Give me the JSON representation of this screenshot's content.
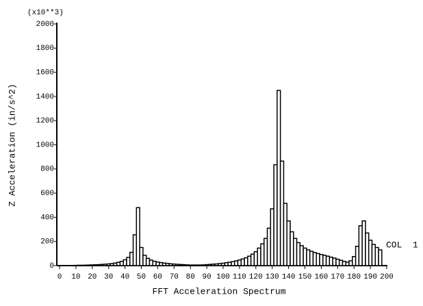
{
  "chart_data": {
    "type": "bar",
    "y_unit_label": "(x10**3)",
    "x_label": "FFT Acceleration Spectrum",
    "y_label": "Z Acceleration (in/s^2)",
    "xlim": [
      0,
      200
    ],
    "xticks": [
      0,
      10,
      20,
      30,
      40,
      50,
      60,
      70,
      80,
      90,
      100,
      110,
      120,
      130,
      140,
      150,
      160,
      170,
      180,
      190,
      200
    ],
    "ylim": [
      0,
      2000
    ],
    "yticks": [
      0,
      200,
      400,
      600,
      800,
      1000,
      1200,
      1400,
      1600,
      1800,
      2000
    ],
    "x": [
      10,
      12,
      14,
      16,
      18,
      20,
      22,
      24,
      26,
      28,
      30,
      32,
      34,
      36,
      38,
      40,
      42,
      44,
      46,
      48,
      50,
      52,
      54,
      56,
      58,
      60,
      62,
      64,
      66,
      68,
      70,
      72,
      74,
      76,
      78,
      80,
      82,
      84,
      86,
      88,
      90,
      92,
      94,
      96,
      98,
      100,
      102,
      104,
      106,
      108,
      110,
      112,
      114,
      116,
      118,
      120,
      122,
      124,
      126,
      128,
      130,
      132,
      134,
      136,
      138,
      140,
      142,
      144,
      146,
      148,
      150,
      152,
      154,
      156,
      158,
      160,
      162,
      164,
      166,
      168,
      170,
      172,
      174,
      176,
      178,
      180,
      182,
      184,
      186,
      188,
      190,
      192,
      194,
      196
    ],
    "series": [
      {
        "name": "COL  1",
        "color": "#ffffff",
        "values": [
          2,
          3,
          3,
          4,
          5,
          6,
          7,
          8,
          10,
          12,
          14,
          17,
          21,
          27,
          35,
          48,
          68,
          110,
          255,
          480,
          150,
          85,
          60,
          45,
          36,
          30,
          25,
          21,
          18,
          15,
          13,
          11,
          9,
          8,
          6,
          5,
          5,
          5,
          5,
          6,
          8,
          10,
          12,
          14,
          17,
          20,
          24,
          28,
          33,
          39,
          46,
          55,
          65,
          78,
          95,
          115,
          145,
          180,
          225,
          310,
          470,
          835,
          1450,
          865,
          515,
          370,
          280,
          225,
          190,
          165,
          145,
          130,
          118,
          108,
          100,
          92,
          85,
          78,
          70,
          62,
          53,
          44,
          35,
          28,
          40,
          75,
          160,
          330,
          370,
          270,
          210,
          175,
          150,
          130
        ]
      }
    ]
  }
}
